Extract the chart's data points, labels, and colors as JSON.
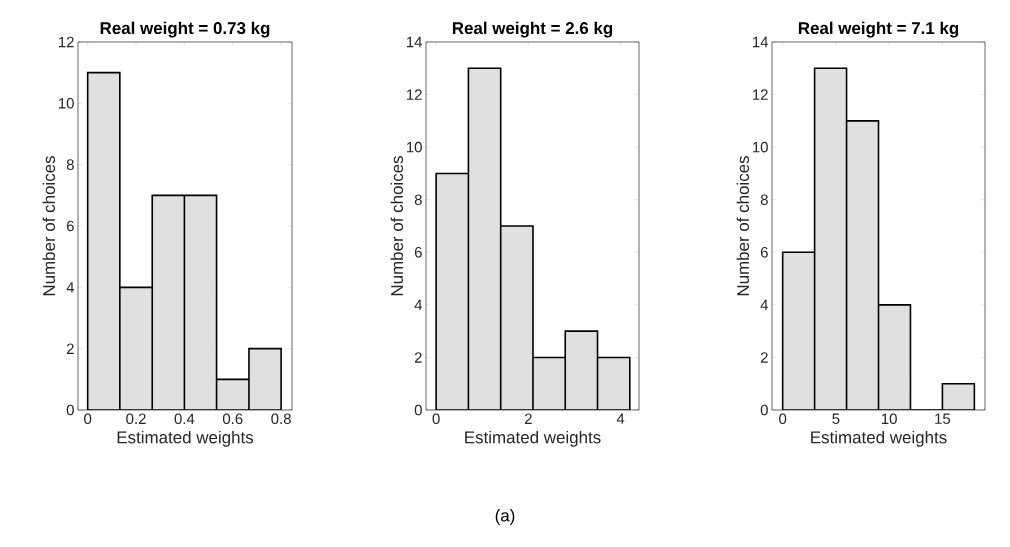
{
  "chart_data": [
    {
      "type": "histogram",
      "title": "Real weight = 0.73 kg",
      "xlabel": "Estimated weights",
      "ylabel": "Number of choices",
      "bins": [
        0,
        0.133,
        0.267,
        0.4,
        0.533,
        0.667,
        0.8
      ],
      "values": [
        11,
        4,
        7,
        7,
        1,
        2
      ],
      "color": "#e0e0e0",
      "xlim": [
        -0.04,
        0.845
      ],
      "ylim": [
        0,
        12
      ],
      "xticks": [
        0,
        0.2,
        0.4,
        0.6,
        0.8
      ],
      "yticks": [
        0,
        2,
        4,
        6,
        8,
        10,
        12
      ],
      "grid": false
    },
    {
      "type": "histogram",
      "title": "Real weight = 2.6 kg",
      "xlabel": "Estimated weights",
      "ylabel": "Number of choices",
      "bins": [
        0,
        0.7,
        1.4,
        2.1,
        2.8,
        3.5,
        4.2
      ],
      "values": [
        9,
        13,
        7,
        2,
        3,
        2
      ],
      "color": "#e0e0e0",
      "xlim": [
        -0.22,
        4.4
      ],
      "ylim": [
        0,
        14
      ],
      "xticks": [
        0,
        2,
        4
      ],
      "yticks": [
        0,
        2,
        4,
        6,
        8,
        10,
        12,
        14
      ],
      "grid": false,
      "annotations": [
        "(a)"
      ]
    },
    {
      "type": "histogram",
      "title": "Real weight = 7.1 kg",
      "xlabel": "Estimated weights",
      "ylabel": "Number of choices",
      "bins": [
        0,
        3,
        6,
        9,
        12,
        15,
        18
      ],
      "values": [
        6,
        13,
        11,
        4,
        0,
        1
      ],
      "color": "#e0e0e0",
      "xlim": [
        -1,
        19
      ],
      "ylim": [
        0,
        14
      ],
      "xticks": [
        0,
        5,
        10,
        15
      ],
      "yticks": [
        0,
        2,
        4,
        6,
        8,
        10,
        12,
        14
      ],
      "grid": false
    }
  ]
}
